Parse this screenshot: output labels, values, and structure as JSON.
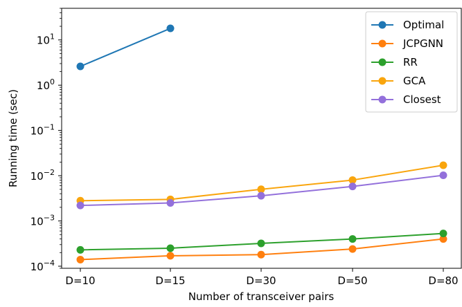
{
  "chart_data": {
    "type": "line",
    "title": "",
    "xlabel": "Number of transceiver pairs",
    "ylabel": "Running time (sec)",
    "yscale": "log",
    "ylim": [
      9e-05,
      50
    ],
    "grid": false,
    "legend_position": "top-right",
    "categories": [
      "D=10",
      "D=15",
      "D=30",
      "D=50",
      "D=80"
    ],
    "y_ticks": [
      {
        "exp": -4,
        "label": "10",
        "sup": "−4"
      },
      {
        "exp": -3,
        "label": "10",
        "sup": "−3"
      },
      {
        "exp": -2,
        "label": "10",
        "sup": "−2"
      },
      {
        "exp": -1,
        "label": "10",
        "sup": "−1"
      },
      {
        "exp": 0,
        "label": "10",
        "sup": "0"
      },
      {
        "exp": 1,
        "label": "10",
        "sup": "1"
      }
    ],
    "series": [
      {
        "name": "Optimal",
        "color": "#1f77b4",
        "values": [
          2.6,
          18,
          null,
          null,
          null
        ]
      },
      {
        "name": "JCPGNN",
        "color": "#ff7f0e",
        "values": [
          0.00014,
          0.00017,
          0.00018,
          0.00024,
          0.0004
        ]
      },
      {
        "name": "RR",
        "color": "#2ca02c",
        "values": [
          0.00023,
          0.00025,
          0.00032,
          0.0004,
          0.00053
        ]
      },
      {
        "name": "GCA",
        "color": "#f9a50d",
        "values": [
          0.0028,
          0.003,
          0.005,
          0.008,
          0.017
        ]
      },
      {
        "name": "Closest",
        "color": "#9370db",
        "values": [
          0.0022,
          0.0025,
          0.0036,
          0.0058,
          0.0102
        ]
      }
    ]
  }
}
